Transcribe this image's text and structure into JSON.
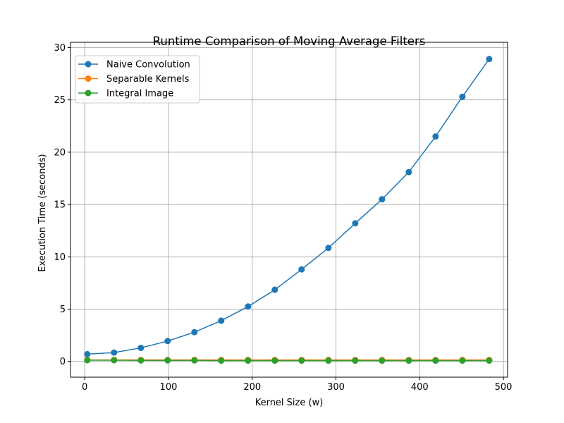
{
  "chart_data": {
    "type": "line",
    "title": "Runtime Comparison of Moving Average Filters",
    "xlabel": "Kernel Size (w)",
    "ylabel": "Execution Time (seconds)",
    "xlim": [
      -17,
      505
    ],
    "ylim": [
      -1.5,
      30.5
    ],
    "xticks": [
      0,
      100,
      200,
      300,
      400,
      500
    ],
    "yticks": [
      0,
      5,
      10,
      15,
      20,
      25,
      30
    ],
    "grid": true,
    "legend_position": "top-left",
    "x": [
      3,
      35,
      67,
      99,
      131,
      163,
      195,
      227,
      259,
      291,
      323,
      355,
      387,
      419,
      451,
      483
    ],
    "series": [
      {
        "name": "Naive Convolution",
        "color": "#1f77b4",
        "values": [
          0.7,
          0.85,
          1.3,
          1.95,
          2.8,
          3.9,
          5.25,
          6.85,
          8.8,
          10.85,
          13.2,
          15.5,
          18.1,
          21.5,
          25.3,
          28.9
        ]
      },
      {
        "name": "Separable Kernels",
        "color": "#ff7f0e",
        "values": [
          0.15,
          0.15,
          0.15,
          0.15,
          0.15,
          0.15,
          0.15,
          0.15,
          0.15,
          0.15,
          0.15,
          0.15,
          0.15,
          0.15,
          0.15,
          0.15
        ]
      },
      {
        "name": "Integral Image",
        "color": "#2ca02c",
        "values": [
          0.12,
          0.12,
          0.1,
          0.1,
          0.1,
          0.08,
          0.08,
          0.08,
          0.08,
          0.08,
          0.08,
          0.08,
          0.08,
          0.08,
          0.08,
          0.08
        ]
      }
    ]
  }
}
